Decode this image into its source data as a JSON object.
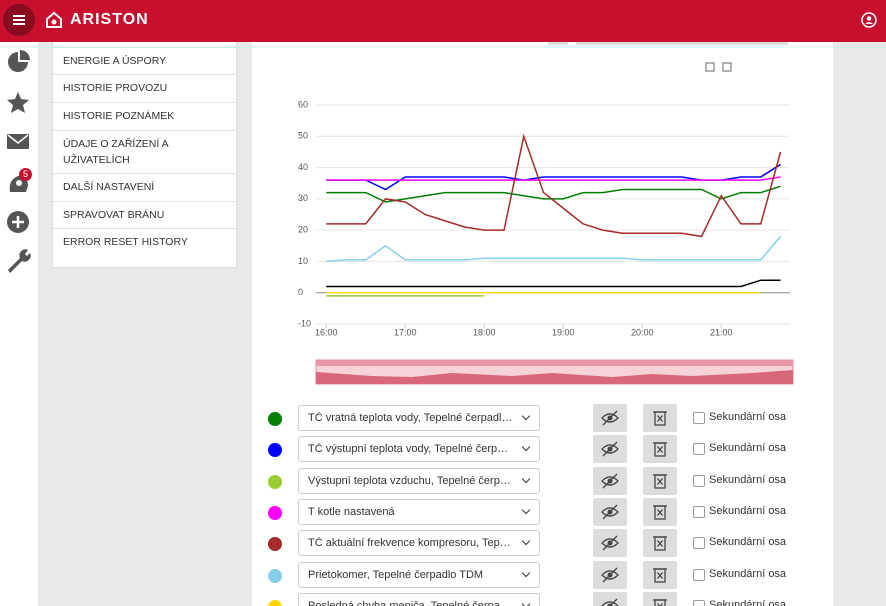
{
  "header": {
    "logo": "ARISTON",
    "badge": "5"
  },
  "menu": [
    "ENERGIE A ÚSPORY",
    "HISTORIE PROVOZU",
    "HISTORIE POZNÁMEK",
    "ÚDAJE O ZAŘÍZENÍ A UŽIVATELÍCH",
    "DALŠÍ NASTAVENÍ",
    "SPRAVOVAT BRÁNU",
    "ERROR RESET HISTORY"
  ],
  "secondary_axis_label": "Sekundární osa",
  "chart_data": {
    "type": "line",
    "x": [
      16,
      16.25,
      16.5,
      16.75,
      17,
      17.25,
      17.5,
      17.75,
      18,
      18.25,
      18.5,
      18.75,
      19,
      19.25,
      19.5,
      19.75,
      20,
      20.25,
      20.5,
      20.75,
      21,
      21.25,
      21.5,
      21.75
    ],
    "xlim": [
      15.87,
      21.87
    ],
    "xticks": [
      {
        "value": 16,
        "label": "16:00"
      },
      {
        "value": 17,
        "label": "17:00"
      },
      {
        "value": 18,
        "label": "18:00"
      },
      {
        "value": 19,
        "label": "19:00"
      },
      {
        "value": 20,
        "label": "20:00"
      },
      {
        "value": 21,
        "label": "21:00"
      }
    ],
    "ylim": [
      -10,
      60
    ],
    "yticks": [
      -10,
      0,
      10,
      20,
      30,
      40,
      50,
      60
    ],
    "grid": true,
    "series": [
      {
        "name": "TČ vratná teplota vody, Tepelné čerpadlo TDM",
        "color": "#008000",
        "values": [
          32,
          32,
          32,
          29,
          30,
          31,
          32,
          32,
          32,
          32,
          31,
          30,
          30,
          32,
          32,
          33,
          33,
          33,
          33,
          33,
          30,
          32,
          32,
          34
        ]
      },
      {
        "name": "TČ výstupní teplota vody, Tepelné čerpadlo TDM",
        "color": "#0000ff",
        "values": [
          36,
          36,
          36,
          33,
          37,
          37,
          37,
          37,
          37,
          37,
          36,
          37,
          37,
          37,
          37,
          37,
          37,
          37,
          37,
          36,
          36,
          37,
          37,
          41
        ]
      },
      {
        "name": "Výstupní teplota vzduchu, Tepelné čerpadlo TDM",
        "color": "#9acd32",
        "values": [
          -1,
          -1,
          -1,
          -1,
          -1,
          -1,
          -1,
          -1,
          -1,
          null,
          null,
          null,
          null,
          null,
          null,
          null,
          null,
          null,
          null,
          null,
          null,
          null,
          null,
          null
        ]
      },
      {
        "name": "T kotle nastavená",
        "color": "#ff00ff",
        "values": [
          36,
          36,
          36,
          36,
          36,
          36,
          36,
          36,
          36,
          36,
          36,
          36,
          36,
          36,
          36,
          36,
          36,
          36,
          36,
          36,
          36,
          36,
          36,
          37
        ]
      },
      {
        "name": "TČ aktuální frekvence kompresoru, Tepelné čerpadlo TDM",
        "color": "#a52a2a",
        "values": [
          22,
          22,
          22,
          30,
          29,
          25,
          23,
          21,
          20,
          20,
          50,
          32,
          27,
          22,
          20,
          19,
          19,
          19,
          19,
          18,
          31,
          22,
          22,
          45
        ]
      },
      {
        "name": "Prietokomer, Tepelné čerpadlo TDM",
        "color": "#87ceeb",
        "values": [
          10,
          10.5,
          10.5,
          15,
          10.5,
          10.5,
          10.5,
          10.5,
          11,
          11,
          11,
          11,
          11,
          11,
          11,
          11,
          10.5,
          10.5,
          10.5,
          10.5,
          10.5,
          10.5,
          10.5,
          18
        ]
      },
      {
        "name": "Posledná chyba meniča, Tepelné čerpadlo TDM",
        "color": "#ffd700",
        "values": [
          0,
          0,
          0,
          0,
          0,
          0,
          0,
          0,
          0,
          0,
          0,
          0,
          0,
          0,
          0,
          0,
          0,
          0,
          0,
          0,
          0,
          0,
          0,
          null
        ]
      },
      {
        "color": "#000000",
        "values": [
          2,
          2,
          2,
          2,
          2,
          2,
          2,
          2,
          2,
          2,
          2,
          2,
          2,
          2,
          2,
          2,
          2,
          2,
          2,
          2,
          2,
          2,
          4,
          4
        ]
      }
    ]
  }
}
